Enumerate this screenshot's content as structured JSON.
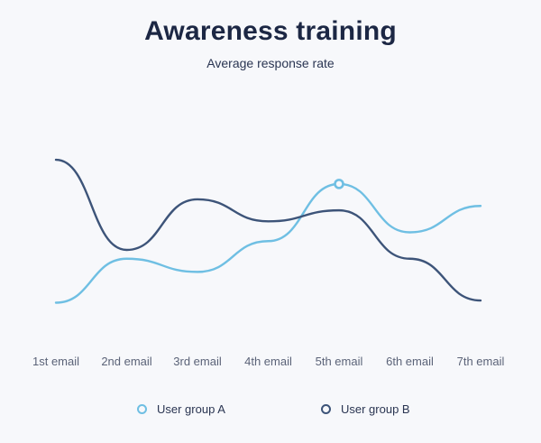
{
  "title": "Awareness training",
  "subtitle": "Average response rate",
  "colors": {
    "series_a": "#6fbfe3",
    "series_b": "#3d5479",
    "background": "#f7f8fb"
  },
  "chart_data": {
    "type": "line",
    "title": "Awareness training",
    "subtitle": "Average response rate",
    "xlabel": "",
    "ylabel": "",
    "categories": [
      "1st email",
      "2nd email",
      "3rd email",
      "4th email",
      "5th email",
      "6th email",
      "7th email"
    ],
    "series": [
      {
        "name": "User group A",
        "color": "#6fbfe3",
        "values": [
          8,
          28,
          22,
          36,
          62,
          40,
          52
        ],
        "highlight_index": 4
      },
      {
        "name": "User group B",
        "color": "#3d5479",
        "values": [
          73,
          32,
          55,
          45,
          50,
          28,
          9
        ]
      }
    ],
    "ylim": [
      0,
      80
    ],
    "grid": false,
    "legend_position": "bottom",
    "smooth": true
  }
}
